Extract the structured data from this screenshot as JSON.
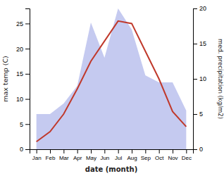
{
  "chart_data": {
    "type": "line",
    "categories": [
      "Jan",
      "Feb",
      "Mar",
      "Apr",
      "May",
      "Jun",
      "Jul",
      "Aug",
      "Sep",
      "Oct",
      "Nov",
      "Dec"
    ],
    "xlabel": "date (month)",
    "ylabel": "max temp (C)",
    "y2label": "med. precipitation (kg/m2)",
    "series": [
      {
        "type": "area",
        "axis": "y2",
        "color": "#c5caf0",
        "values": [
          5.0,
          5.0,
          6.5,
          9.0,
          18.0,
          13.0,
          20.0,
          17.0,
          10.5,
          9.5,
          9.5,
          5.5
        ]
      },
      {
        "type": "line",
        "color": "#c0392b",
        "values": [
          1.5,
          3.5,
          7.0,
          12.0,
          17.5,
          21.5,
          25.5,
          25.0,
          19.5,
          14.0,
          7.5,
          4.5
        ]
      }
    ],
    "ylim": [
      0,
      28
    ],
    "yticks": [
      0,
      5,
      10,
      15,
      20,
      25
    ],
    "y2lim": [
      0,
      20
    ],
    "y2ticks": [
      0,
      5,
      10,
      15,
      20
    ],
    "grid": false
  }
}
